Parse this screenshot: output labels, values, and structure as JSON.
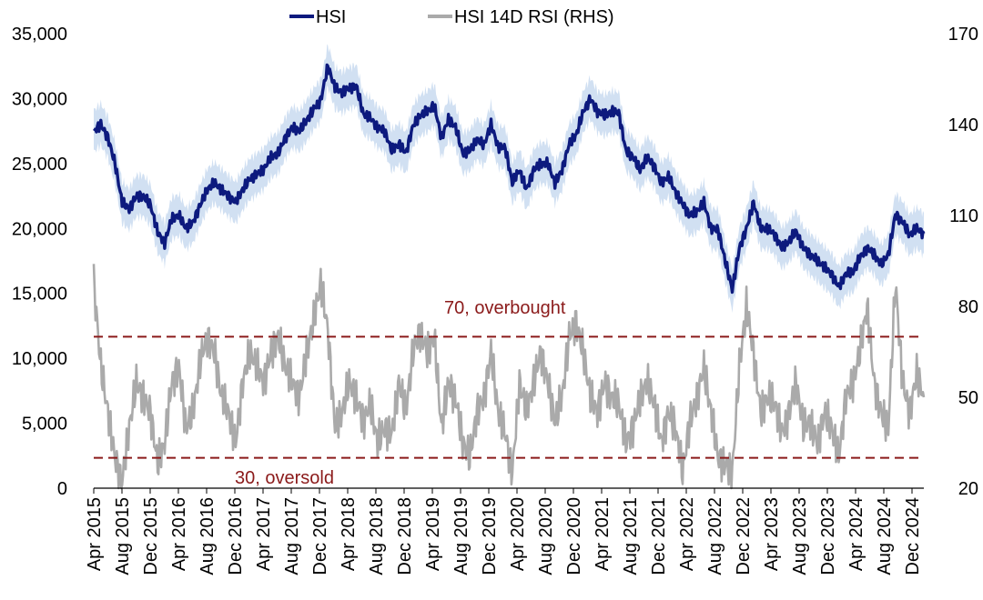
{
  "chart_data": {
    "type": "line",
    "colors": {
      "hsi": "#0d1a7e",
      "band": "#c9daf0",
      "rsi": "#aaaaaa",
      "threshold": "#8b1a1a"
    },
    "legend": {
      "position": "top",
      "items": [
        {
          "name": "HSI",
          "color": "#0d1a7e"
        },
        {
          "name": "HSI 14D RSI (RHS)",
          "color": "#aaaaaa"
        }
      ]
    },
    "x_ticks": [
      "Apr 2015",
      "Aug 2015",
      "Dec 2015",
      "Apr 2016",
      "Aug 2016",
      "Dec 2016",
      "Apr 2017",
      "Aug 2017",
      "Dec 2017",
      "Apr 2018",
      "Aug 2018",
      "Dec 2018",
      "Apr 2019",
      "Aug 2019",
      "Dec 2019",
      "Apr 2020",
      "Aug 2020",
      "Dec 2020",
      "Apr 2021",
      "Aug 2021",
      "Dec 2021",
      "Apr 2022",
      "Aug 2022",
      "Dec 2022",
      "Apr 2023",
      "Aug 2023",
      "Dec 2023",
      "Apr 2024",
      "Aug 2024",
      "Dec 2024"
    ],
    "x_range": [
      "2015-04",
      "2025-01"
    ],
    "y_left": {
      "ticks": [
        "0",
        "5,000",
        "10,000",
        "15,000",
        "20,000",
        "25,000",
        "30,000",
        "35,000"
      ],
      "range": [
        0,
        35000
      ]
    },
    "y_right": {
      "ticks": [
        "20",
        "50",
        "80",
        "110",
        "140",
        "170"
      ],
      "range": [
        20,
        170
      ]
    },
    "grid": false,
    "annotations": [
      {
        "label": "70, overbought",
        "value": 70,
        "axis": "right"
      },
      {
        "label": "30, oversold",
        "value": 30,
        "axis": "right"
      }
    ],
    "series": [
      {
        "name": "HSI",
        "axis": "left",
        "x": [
          "2015-04",
          "2015-05",
          "2015-06",
          "2015-07",
          "2015-08",
          "2015-09",
          "2015-10",
          "2015-11",
          "2015-12",
          "2016-01",
          "2016-02",
          "2016-03",
          "2016-04",
          "2016-05",
          "2016-06",
          "2016-07",
          "2016-08",
          "2016-09",
          "2016-10",
          "2016-11",
          "2016-12",
          "2017-01",
          "2017-02",
          "2017-03",
          "2017-04",
          "2017-05",
          "2017-06",
          "2017-07",
          "2017-08",
          "2017-09",
          "2017-10",
          "2017-11",
          "2017-12",
          "2018-01",
          "2018-02",
          "2018-03",
          "2018-04",
          "2018-05",
          "2018-06",
          "2018-07",
          "2018-08",
          "2018-09",
          "2018-10",
          "2018-11",
          "2018-12",
          "2019-01",
          "2019-02",
          "2019-03",
          "2019-04",
          "2019-05",
          "2019-06",
          "2019-07",
          "2019-08",
          "2019-09",
          "2019-10",
          "2019-11",
          "2019-12",
          "2020-01",
          "2020-02",
          "2020-03",
          "2020-04",
          "2020-05",
          "2020-06",
          "2020-07",
          "2020-08",
          "2020-09",
          "2020-10",
          "2020-11",
          "2020-12",
          "2021-01",
          "2021-02",
          "2021-03",
          "2021-04",
          "2021-05",
          "2021-06",
          "2021-07",
          "2021-08",
          "2021-09",
          "2021-10",
          "2021-11",
          "2021-12",
          "2022-01",
          "2022-02",
          "2022-03",
          "2022-04",
          "2022-05",
          "2022-06",
          "2022-07",
          "2022-08",
          "2022-09",
          "2022-10",
          "2022-11",
          "2022-12",
          "2023-01",
          "2023-02",
          "2023-03",
          "2023-04",
          "2023-05",
          "2023-06",
          "2023-07",
          "2023-08",
          "2023-09",
          "2023-10",
          "2023-11",
          "2023-12",
          "2024-01",
          "2024-02",
          "2024-03",
          "2024-04",
          "2024-05",
          "2024-06",
          "2024-07",
          "2024-08",
          "2024-09",
          "2024-10",
          "2024-11",
          "2024-12",
          "2025-01"
        ],
        "values": [
          27500,
          28000,
          27000,
          25000,
          22000,
          21500,
          22500,
          22500,
          21800,
          19700,
          18900,
          20800,
          21000,
          20000,
          20500,
          21800,
          23000,
          23500,
          23000,
          22500,
          22000,
          23000,
          23800,
          24200,
          24600,
          25500,
          25800,
          27000,
          27800,
          27500,
          28300,
          29200,
          29900,
          32500,
          30800,
          30500,
          30800,
          31000,
          28800,
          28500,
          27800,
          27500,
          26000,
          26500,
          25800,
          27900,
          28700,
          29000,
          29500,
          27000,
          28400,
          27800,
          25800,
          26000,
          26900,
          26400,
          28000,
          26300,
          26200,
          23500,
          24500,
          23000,
          24500,
          25000,
          25000,
          23500,
          24500,
          26500,
          27200,
          29000,
          30000,
          29000,
          28700,
          29000,
          28900,
          26000,
          25500,
          24500,
          25500,
          24800,
          23500,
          24000,
          22800,
          21900,
          21000,
          21300,
          22000,
          20000,
          19900,
          17500,
          15300,
          18500,
          20000,
          22000,
          20000,
          20000,
          19500,
          18500,
          19000,
          19800,
          18500,
          18000,
          17500,
          17000,
          16500,
          15500,
          16500,
          16600,
          17800,
          18500,
          18000,
          17200,
          18000,
          21100,
          20500,
          19500,
          20000,
          19600
        ]
      },
      {
        "name": "HSI 14D RSI (RHS)",
        "axis": "right",
        "x": [
          "2015-04",
          "2015-05",
          "2015-06",
          "2015-07",
          "2015-08",
          "2015-09",
          "2015-10",
          "2015-11",
          "2015-12",
          "2016-01",
          "2016-02",
          "2016-03",
          "2016-04",
          "2016-05",
          "2016-06",
          "2016-07",
          "2016-08",
          "2016-09",
          "2016-10",
          "2016-11",
          "2016-12",
          "2017-01",
          "2017-02",
          "2017-03",
          "2017-04",
          "2017-05",
          "2017-06",
          "2017-07",
          "2017-08",
          "2017-09",
          "2017-10",
          "2017-11",
          "2017-12",
          "2018-01",
          "2018-02",
          "2018-03",
          "2018-04",
          "2018-05",
          "2018-06",
          "2018-07",
          "2018-08",
          "2018-09",
          "2018-10",
          "2018-11",
          "2018-12",
          "2019-01",
          "2019-02",
          "2019-03",
          "2019-04",
          "2019-05",
          "2019-06",
          "2019-07",
          "2019-08",
          "2019-09",
          "2019-10",
          "2019-11",
          "2019-12",
          "2020-01",
          "2020-02",
          "2020-03",
          "2020-04",
          "2020-05",
          "2020-06",
          "2020-07",
          "2020-08",
          "2020-09",
          "2020-10",
          "2020-11",
          "2020-12",
          "2021-01",
          "2021-02",
          "2021-03",
          "2021-04",
          "2021-05",
          "2021-06",
          "2021-07",
          "2021-08",
          "2021-09",
          "2021-10",
          "2021-11",
          "2021-12",
          "2022-01",
          "2022-02",
          "2022-03",
          "2022-04",
          "2022-05",
          "2022-06",
          "2022-07",
          "2022-08",
          "2022-09",
          "2022-10",
          "2022-11",
          "2022-12",
          "2023-01",
          "2023-02",
          "2023-03",
          "2023-04",
          "2023-05",
          "2023-06",
          "2023-07",
          "2023-08",
          "2023-09",
          "2023-10",
          "2023-11",
          "2023-12",
          "2024-01",
          "2024-02",
          "2024-03",
          "2024-04",
          "2024-05",
          "2024-06",
          "2024-07",
          "2024-08",
          "2024-09",
          "2024-10",
          "2024-11",
          "2024-12",
          "2025-01"
        ],
        "values": [
          88,
          60,
          45,
          30,
          22,
          40,
          55,
          50,
          45,
          28,
          35,
          55,
          60,
          40,
          45,
          62,
          70,
          65,
          50,
          45,
          35,
          55,
          65,
          60,
          55,
          65,
          70,
          60,
          55,
          50,
          65,
          75,
          88,
          72,
          40,
          45,
          55,
          50,
          42,
          48,
          35,
          40,
          38,
          55,
          45,
          65,
          72,
          65,
          70,
          40,
          55,
          50,
          35,
          30,
          45,
          50,
          65,
          45,
          38,
          25,
          55,
          45,
          55,
          65,
          55,
          42,
          50,
          70,
          75,
          65,
          50,
          45,
          55,
          50,
          48,
          35,
          40,
          50,
          55,
          48,
          35,
          45,
          40,
          25,
          42,
          50,
          60,
          45,
          30,
          28,
          25,
          60,
          80,
          65,
          45,
          50,
          48,
          38,
          45,
          55,
          40,
          42,
          35,
          45,
          40,
          30,
          50,
          55,
          65,
          80,
          55,
          45,
          40,
          88,
          55,
          45,
          58,
          50
        ]
      }
    ]
  }
}
